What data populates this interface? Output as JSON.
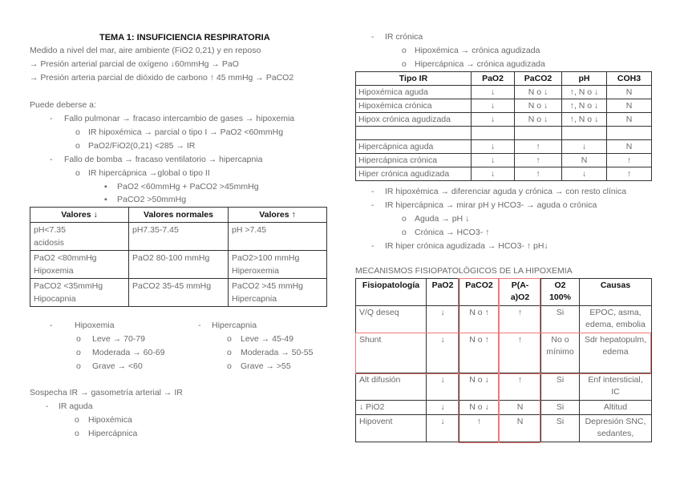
{
  "title": "TEMA 1: INSUFICIENCIA RESPIRATORIA",
  "intro": [
    "Medido a nivel del mar, aire ambiente (FiO2 0,21) y en reposo",
    "→ Presión arterial parcial de oxígeno ↓60mmHg → PaO",
    "→ Presión arteria parcial de dióxido de carbono ↑ 45 mmHg → PaCO2"
  ],
  "causes": {
    "heading": "Puede deberse a:",
    "items": [
      "Fallo pulmonar → fracaso intercambio de gases → hipoxemia",
      "IR hipoxémica → parcial o tipo I → PaO2 <60mmHg",
      "PaO2/FiO2(0,21) <285 → IR",
      "Fallo de bomba → fracaso ventilatorio → hipercapnia",
      "IR hipercápnica →global o tipo II",
      "PaO2 <60mmHg + PaCO2 >45mmHg",
      "PaCO2 >50mmHg"
    ]
  },
  "values_table": {
    "headers": [
      "Valores ↓",
      "Valores normales",
      "Valores ↑"
    ],
    "rows": [
      [
        "pH<7.35\nacidosis",
        "pH7.35-7.45",
        "pH >7.45"
      ],
      [
        "PaO2 <80mmHg\nHipoxemia",
        "PaO2 80-100 mmHg",
        "PaO2>100 mmHg\nHiperoxemia"
      ],
      [
        "PaCO2 <35mmHg\nHipocapnia",
        "PaCO2 35-45 mmHg",
        "PaCO2 >45 mmHg\nHipercapnia"
      ]
    ]
  },
  "hipoxemia": {
    "label": "Hipoxemia",
    "items": [
      "Leve → 70-79",
      "Moderada → 60-69",
      "Grave → <60"
    ]
  },
  "hipercapnia": {
    "label": "Hipercapnia",
    "items": [
      "Leve → 45-49",
      "Moderada → 50-55",
      "Grave → >55"
    ]
  },
  "sospecha": {
    "line": "Sospecha IR → gasometría arterial → IR",
    "aguda": "IR aguda",
    "aguda_items": [
      "Hipoxémica",
      "Hipercápnica"
    ]
  },
  "cronica": {
    "label": "IR crónica",
    "items": [
      "Hipoxémica → crónica agudizada",
      "Hipercápnica → crónica agudizada"
    ]
  },
  "tipo_table": {
    "headers": [
      "Tipo IR",
      "PaO2",
      "PaCO2",
      "pH",
      "COH3"
    ],
    "rows": [
      [
        "Hipoxémica aguda",
        "↓",
        "N o ↓",
        "↑, N o ↓",
        "N"
      ],
      [
        "Hipoxémica crónica",
        "↓",
        "N o ↓",
        "↑, N o ↓",
        "N"
      ],
      [
        "Hipox crónica agudizada",
        "↓",
        "N o ↓",
        "↑, N o ↓",
        "N"
      ],
      [
        "",
        "",
        "",
        "",
        ""
      ],
      [
        "Hipercápnica aguda",
        "↓",
        "↑",
        "↓",
        "N"
      ],
      [
        "Hipercápnica crónica",
        "↓",
        "↑",
        "N",
        "↑"
      ],
      [
        "Hiper crónica agudizada",
        "↓",
        "↑",
        "↓",
        "↑"
      ]
    ]
  },
  "notes": [
    "IR hipoxémica → diferenciar aguda y crónica → con resto clínica",
    "IR hipercápnica → mirar pH y HCO3- → aguda o crónica",
    "Aguda → pH ↓",
    "Crónica → HCO3- ↑",
    "IR hiper crónica agudizada → HCO3- ↑ pH↓"
  ],
  "mec_title": "MECANISMOS FISIOPATOLÓGICOS DE LA HIPOXEMIA",
  "mec_table": {
    "headers": [
      "Fisiopatología",
      "PaO2",
      "PaCO2",
      "P(A-a)O2",
      "O2 100%",
      "Causas"
    ],
    "rows": [
      [
        "V/Q deseq",
        "↓",
        "N o ↑",
        "↑",
        "Si",
        "EPOC, asma, edema, embolia"
      ],
      [
        "Shunt",
        "↓",
        "N o ↑",
        "↑",
        "No o mínimo",
        "Sdr hepatopulm, edema"
      ],
      [
        "Alt difusión",
        "↓",
        "N o ↓",
        "↑",
        "Si",
        "Enf intersticial, IC"
      ],
      [
        "↓ PiO2",
        "↓",
        "N o ↓",
        "N",
        "Si",
        "Altitud"
      ],
      [
        "Hipovent",
        "↓",
        "↑",
        "N",
        "Si",
        "Depresión SNC, sedantes,"
      ]
    ]
  },
  "highlight_color": "#f07878"
}
